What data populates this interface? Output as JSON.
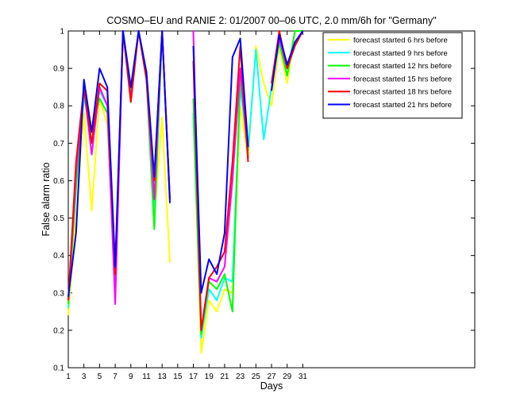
{
  "chart_data": {
    "type": "line",
    "title": "COSMO–EU and RANIE 2: 01/2007 00–06 UTC, 2.0 mm/6h for \"Germany\"",
    "xlabel": "Days",
    "ylabel": "False alarm ratio",
    "xlim": [
      1,
      53
    ],
    "ylim": [
      0.1,
      1
    ],
    "x_ticks": [
      1,
      3,
      5,
      7,
      9,
      11,
      13,
      15,
      17,
      19,
      21,
      23,
      25,
      27,
      29,
      31
    ],
    "y_ticks": [
      0.1,
      0.2,
      0.3,
      0.4,
      0.5,
      0.6,
      0.7,
      0.8,
      0.9,
      1
    ],
    "y_tick_labels": [
      "0.1",
      "0.2",
      "0.3",
      "0.4",
      "0.5",
      "0.6",
      "0.7",
      "0.8",
      "0.9",
      "1"
    ],
    "grid": false,
    "legend_position": "top-right",
    "series": [
      {
        "name": "forecast started 6 hrs before",
        "color": "#ffff00",
        "values": [
          0.24,
          0.5,
          0.78,
          0.52,
          0.82,
          0.75,
          0.29,
          1.0,
          0.83,
          1.0,
          0.87,
          0.5,
          0.77,
          0.38,
          null,
          null,
          0.77,
          0.14,
          0.28,
          0.25,
          0.31,
          0.3,
          0.8,
          0.66,
          0.96,
          0.86,
          0.8,
          0.96,
          0.86,
          1.0,
          1.0
        ]
      },
      {
        "name": "forecast started 9 hrs before",
        "color": "#00ffff",
        "values": [
          0.26,
          0.6,
          0.82,
          0.73,
          0.84,
          0.8,
          0.31,
          1.0,
          0.83,
          1.0,
          0.88,
          0.52,
          1.0,
          0.55,
          null,
          null,
          0.78,
          0.18,
          0.31,
          0.28,
          0.34,
          0.33,
          0.85,
          0.68,
          0.95,
          0.71,
          0.85,
          0.97,
          0.88,
          1.0,
          1.0
        ]
      },
      {
        "name": "forecast started 12 hrs before",
        "color": "#00ff00",
        "values": [
          0.27,
          0.58,
          0.84,
          0.73,
          0.82,
          0.78,
          0.32,
          1.0,
          0.84,
          1.0,
          0.87,
          0.47,
          1.0,
          0.55,
          null,
          null,
          0.82,
          0.19,
          0.33,
          0.31,
          0.35,
          0.25,
          0.88,
          0.68,
          null,
          null,
          0.86,
          0.97,
          0.88,
          1.0,
          1.0
        ]
      },
      {
        "name": "forecast started 15 hrs before",
        "color": "#ff00ff",
        "values": [
          0.28,
          0.62,
          0.85,
          0.67,
          0.85,
          0.8,
          0.27,
          1.0,
          0.82,
          1.0,
          0.87,
          0.55,
          1.0,
          0.55,
          null,
          null,
          1.0,
          0.2,
          0.34,
          0.33,
          0.37,
          0.6,
          0.9,
          0.66,
          null,
          null,
          0.86,
          0.98,
          0.9,
          0.97,
          1.0
        ]
      },
      {
        "name": "forecast started 18 hrs before",
        "color": "#ff0000",
        "values": [
          0.28,
          0.65,
          0.85,
          0.7,
          0.86,
          0.84,
          0.35,
          1.0,
          0.81,
          1.0,
          0.87,
          0.6,
          1.0,
          0.55,
          null,
          null,
          0.92,
          0.2,
          0.34,
          0.37,
          0.41,
          0.65,
          0.96,
          0.65,
          null,
          null,
          0.86,
          1.0,
          0.9,
          0.96,
          1.0
        ]
      },
      {
        "name": "forecast started 21 hrs before",
        "color": "#0000ff",
        "values": [
          0.29,
          0.46,
          0.87,
          0.73,
          0.9,
          0.85,
          0.37,
          1.0,
          0.85,
          1.0,
          0.89,
          0.61,
          1.0,
          0.54,
          null,
          null,
          0.96,
          0.3,
          0.39,
          0.35,
          0.46,
          0.93,
          0.98,
          0.69,
          null,
          null,
          0.84,
          0.99,
          0.91,
          0.97,
          1.0
        ]
      }
    ]
  }
}
